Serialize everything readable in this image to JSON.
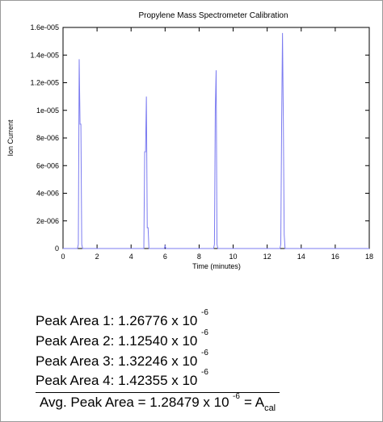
{
  "chart_data": {
    "type": "line",
    "title": "Propylene Mass Spectrometer Calibration",
    "xlabel": "Time (minutes)",
    "ylabel": "Ion Current",
    "xlim": [
      0,
      18
    ],
    "ylim": [
      0,
      1.6e-05
    ],
    "x_ticks": [
      "0",
      "2",
      "4",
      "6",
      "8",
      "10",
      "12",
      "14",
      "16",
      "18"
    ],
    "y_ticks": [
      "0",
      "2e-006",
      "4e-006",
      "6e-006",
      "8e-006",
      "1e-005",
      "1.2e-005",
      "1.4e-005",
      "1.6e-005"
    ],
    "grid": false,
    "series": [
      {
        "color": "#7b7bf0",
        "x": [
          0,
          0.85,
          0.9,
          0.95,
          1.0,
          1.05,
          1.1,
          1.15,
          1.2,
          1.3,
          4.75,
          4.8,
          4.85,
          4.9,
          4.95,
          5.0,
          5.05,
          5.1,
          5.2,
          5.95,
          6.0,
          6.05,
          8.85,
          8.9,
          8.95,
          9.0,
          9.05,
          9.1,
          9.15,
          9.25,
          12.75,
          12.8,
          12.85,
          12.9,
          12.95,
          13.0,
          13.05,
          13.1,
          18
        ],
        "y": [
          0,
          0,
          3e-07,
          1.37e-05,
          9e-06,
          9e-06,
          3e-07,
          0,
          0,
          0,
          0,
          7e-06,
          7e-06,
          1.1e-05,
          1.5e-06,
          1.5e-06,
          0,
          0,
          0,
          0,
          2e-07,
          0,
          0,
          3e-07,
          1.01e-05,
          1.29e-05,
          3e-07,
          0,
          0,
          0,
          0,
          3e-07,
          9.2e-06,
          1.56e-05,
          9.2e-06,
          1e-06,
          0,
          0,
          0
        ]
      }
    ]
  },
  "results": {
    "peak_areas": [
      {
        "text": "Peak Area 1: 1.26776 x 10",
        "exp": "-6"
      },
      {
        "text": "Peak Area 2: 1.12540 x 10",
        "exp": "-6"
      },
      {
        "text": "Peak Area 3: 1.32246 x 10",
        "exp": "-6"
      },
      {
        "text": "Peak Area 4: 1.42355 x 10",
        "exp": "-6"
      }
    ],
    "average": {
      "text": "Avg. Peak Area = 1.28479 x 10",
      "exp": "-6",
      "equals": "= A",
      "subscript": "cal"
    }
  }
}
